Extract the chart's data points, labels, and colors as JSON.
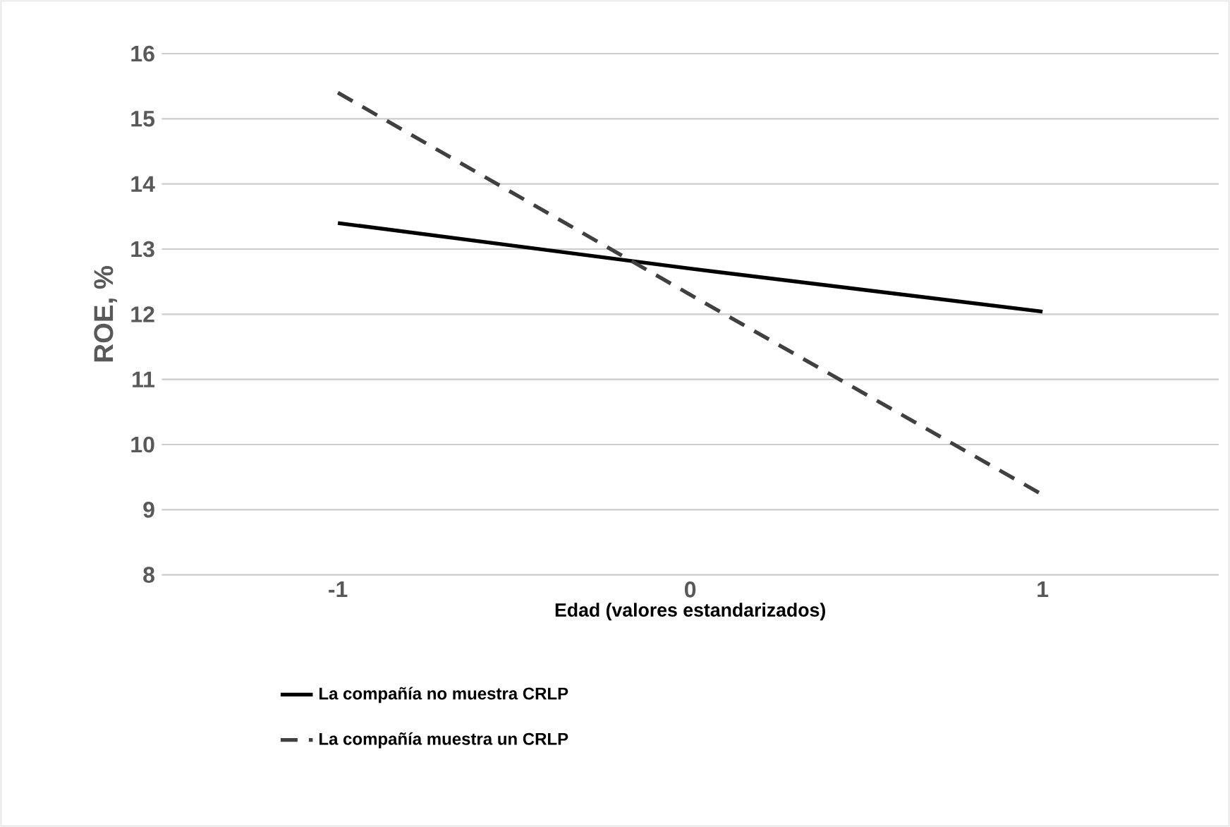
{
  "chart_data": {
    "type": "line",
    "xlabel": "Edad (valores estandarizados)",
    "ylabel": "ROE, %",
    "categories": [
      "-1",
      "0",
      "1"
    ],
    "series": [
      {
        "name": "La compañía no muestra CRLP",
        "color": "#000000",
        "line_style": "solid",
        "values": [
          13.4,
          12.7,
          12.04
        ]
      },
      {
        "name": "La compañía muestra un CRLP",
        "color": "#404040",
        "line_style": "dashed",
        "values": [
          15.4,
          12.3,
          9.23
        ]
      }
    ],
    "ylim": [
      8,
      16
    ],
    "yticks": [
      8,
      9,
      10,
      11,
      12,
      13,
      14,
      15,
      16
    ],
    "grid": "y",
    "legend": "bottom",
    "marker": "none"
  }
}
